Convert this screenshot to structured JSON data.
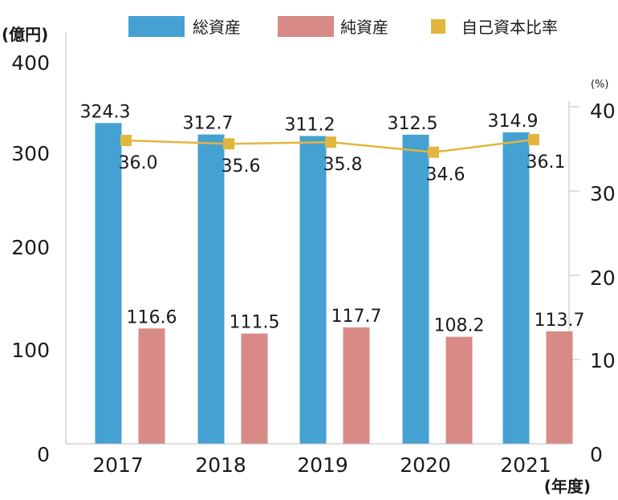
{
  "chart_data": {
    "type": "bar",
    "categories": [
      "2017",
      "2018",
      "2019",
      "2020",
      "2021"
    ],
    "series": [
      {
        "name": "総資産",
        "type": "bar",
        "axis": "left",
        "color": "#45a1d1",
        "values": [
          324.3,
          312.7,
          311.2,
          312.5,
          314.9
        ]
      },
      {
        "name": "純資産",
        "type": "bar",
        "axis": "left",
        "color": "#d88a87",
        "values": [
          116.6,
          111.5,
          117.7,
          108.2,
          113.7
        ]
      },
      {
        "name": "自己資本比率",
        "type": "line",
        "axis": "right",
        "color": "#e2b53e",
        "values": [
          36.0,
          35.6,
          35.8,
          34.6,
          36.1
        ]
      }
    ],
    "y_left": {
      "label": "(億円)",
      "ylim": [
        0,
        400
      ],
      "ticks": [
        "0",
        "100",
        "200",
        "300",
        "400"
      ]
    },
    "y_right": {
      "label": "(%)",
      "ylim": [
        0,
        40
      ],
      "ticks": [
        "0",
        "10",
        "20",
        "30",
        "40"
      ]
    },
    "x_unit": "(年度)",
    "legend_position": "top"
  }
}
